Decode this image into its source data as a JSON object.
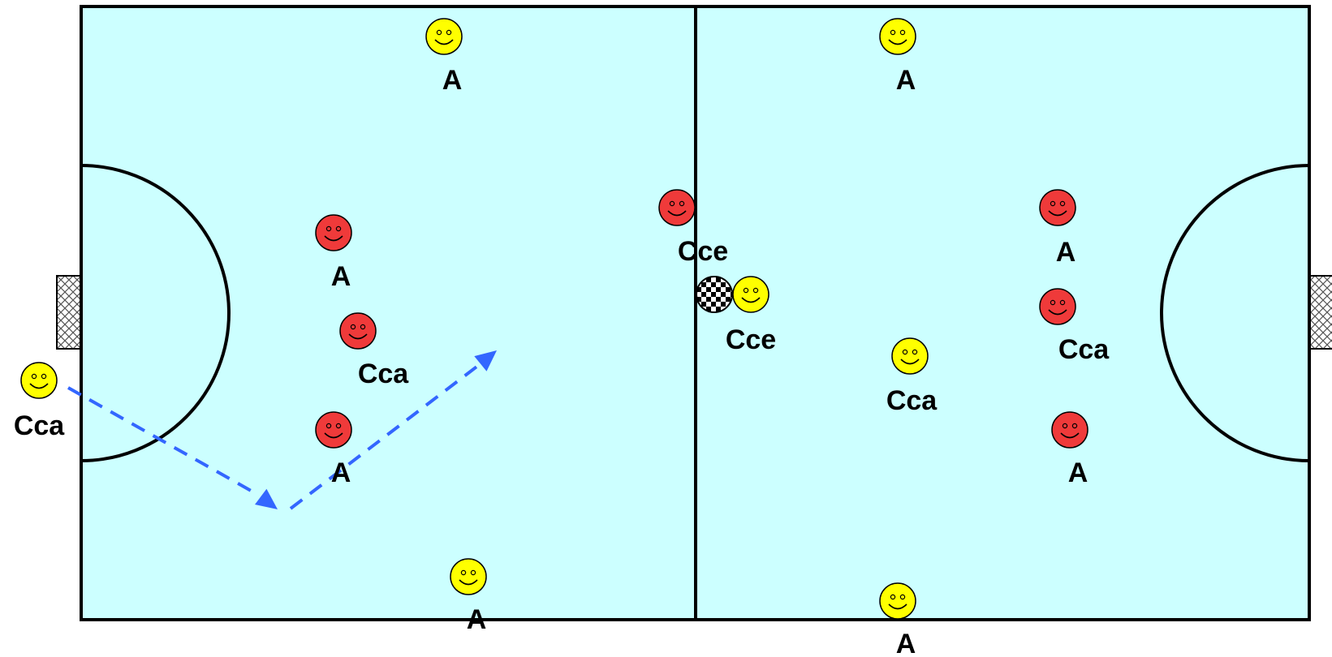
{
  "colors": {
    "court_fill": "#ccffff",
    "line": "#000000",
    "team_yellow": "#ffff00",
    "team_red": "#ef3a3a",
    "arrow": "#3366ff",
    "goal_net": "#bbbbbb"
  },
  "players": [
    {
      "id": "y-top-left",
      "team": "yellow",
      "label": "A"
    },
    {
      "id": "y-top-right",
      "team": "yellow",
      "label": "A"
    },
    {
      "id": "y-bottom-left",
      "team": "yellow",
      "label": "A"
    },
    {
      "id": "y-bottom-right",
      "team": "yellow",
      "label": "A"
    },
    {
      "id": "y-outside-left",
      "team": "yellow",
      "label": "Cca"
    },
    {
      "id": "y-center",
      "team": "yellow",
      "label": "Cce"
    },
    {
      "id": "y-right-mid",
      "team": "yellow",
      "label": "Cca"
    },
    {
      "id": "r-left-upper",
      "team": "red",
      "label": "A"
    },
    {
      "id": "r-left-mid",
      "team": "red",
      "label": "Cca"
    },
    {
      "id": "r-left-lower",
      "team": "red",
      "label": "A"
    },
    {
      "id": "r-center",
      "team": "red",
      "label": "Cce"
    },
    {
      "id": "r-right-upper",
      "team": "red",
      "label": "A"
    },
    {
      "id": "r-right-mid",
      "team": "red",
      "label": "Cca"
    },
    {
      "id": "r-right-lower",
      "team": "red",
      "label": "A"
    }
  ],
  "ball": {
    "icon": "checkered-ball-icon"
  },
  "run_path": {
    "style": "dashed",
    "segments": 2
  }
}
